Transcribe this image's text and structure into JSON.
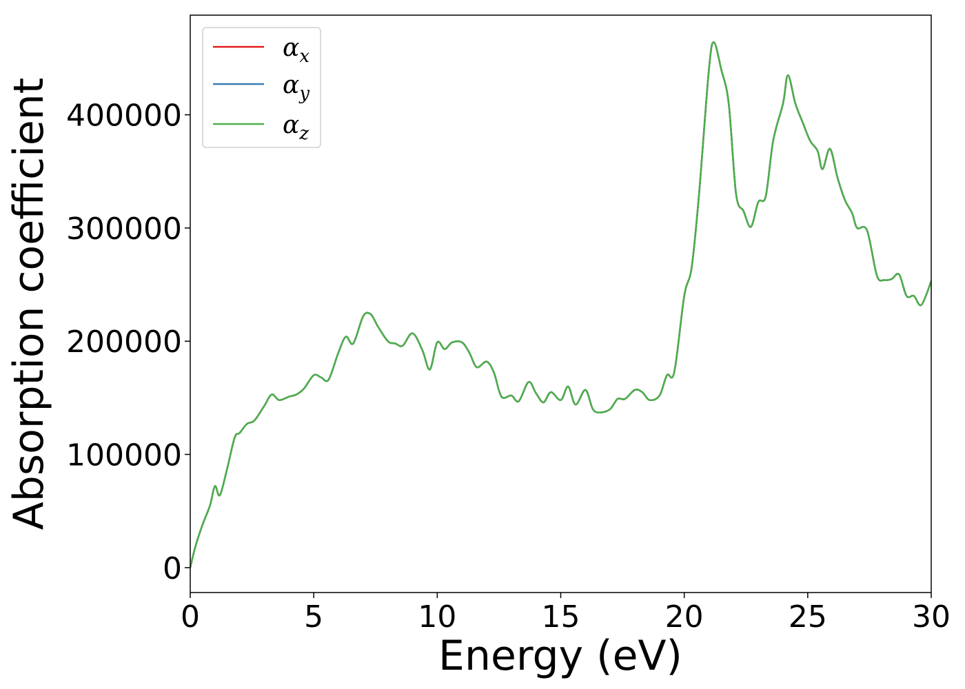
{
  "chart_data": {
    "type": "line",
    "title": "",
    "xlabel": "Energy (eV)",
    "ylabel": "Absorption coefficient",
    "xlim": [
      0,
      30
    ],
    "ylim": [
      -22000,
      488000
    ],
    "xticks": [
      0,
      5,
      10,
      15,
      20,
      25,
      30
    ],
    "yticks": [
      0,
      100000,
      200000,
      300000,
      400000
    ],
    "grid": false,
    "legend": "top-left",
    "x": [
      0,
      0.2,
      0.5,
      0.8,
      1.0,
      1.2,
      1.5,
      1.8,
      2.0,
      2.3,
      2.6,
      3.0,
      3.3,
      3.6,
      4.0,
      4.3,
      4.6,
      5.0,
      5.3,
      5.6,
      6.0,
      6.3,
      6.6,
      7.0,
      7.3,
      7.6,
      8.0,
      8.3,
      8.6,
      9.0,
      9.4,
      9.7,
      10.0,
      10.3,
      10.6,
      11.0,
      11.3,
      11.6,
      12.0,
      12.3,
      12.6,
      13.0,
      13.3,
      13.7,
      14.0,
      14.3,
      14.6,
      15.0,
      15.3,
      15.6,
      16.0,
      16.3,
      16.6,
      17.0,
      17.3,
      17.6,
      18.0,
      18.3,
      18.6,
      19.0,
      19.3,
      19.6,
      20.0,
      20.3,
      20.6,
      21.0,
      21.2,
      21.5,
      21.8,
      22.1,
      22.4,
      22.7,
      23.0,
      23.3,
      23.6,
      24.0,
      24.2,
      24.5,
      24.8,
      25.1,
      25.4,
      25.6,
      25.9,
      26.2,
      26.5,
      26.8,
      27.0,
      27.4,
      27.8,
      28.1,
      28.4,
      28.7,
      29.0,
      29.3,
      29.6,
      30.0
    ],
    "series": [
      {
        "name": "α_x",
        "color": "#e41a1c",
        "values": [
          0,
          18000,
          38000,
          55000,
          72000,
          64000,
          88000,
          115000,
          119000,
          127000,
          130000,
          143000,
          153000,
          148000,
          151000,
          153000,
          158000,
          170000,
          168000,
          166000,
          190000,
          204000,
          198000,
          222000,
          224000,
          213000,
          200000,
          198000,
          196000,
          207000,
          192000,
          175000,
          199000,
          193000,
          199000,
          199000,
          190000,
          177000,
          182000,
          172000,
          151000,
          152000,
          147000,
          164000,
          154000,
          146000,
          155000,
          148000,
          160000,
          144000,
          157000,
          140000,
          137000,
          140000,
          149000,
          149000,
          157000,
          155000,
          148000,
          152000,
          170000,
          173000,
          240000,
          265000,
          330000,
          440000,
          464000,
          440000,
          410000,
          330000,
          315000,
          301000,
          323000,
          328000,
          377000,
          410000,
          435000,
          410000,
          393000,
          377000,
          368000,
          352000,
          370000,
          345000,
          325000,
          313000,
          300000,
          298000,
          258000,
          254000,
          255000,
          259000,
          240000,
          240000,
          232000,
          253000
        ]
      },
      {
        "name": "α_y",
        "color": "#377eb8",
        "values": [
          0,
          18000,
          38000,
          55000,
          72000,
          64000,
          88000,
          115000,
          119000,
          127000,
          130000,
          143000,
          153000,
          148000,
          151000,
          153000,
          158000,
          170000,
          168000,
          166000,
          190000,
          204000,
          198000,
          222000,
          224000,
          213000,
          200000,
          198000,
          196000,
          207000,
          192000,
          175000,
          199000,
          193000,
          199000,
          199000,
          190000,
          177000,
          182000,
          172000,
          151000,
          152000,
          147000,
          164000,
          154000,
          146000,
          155000,
          148000,
          160000,
          144000,
          157000,
          140000,
          137000,
          140000,
          149000,
          149000,
          157000,
          155000,
          148000,
          152000,
          170000,
          173000,
          240000,
          265000,
          330000,
          440000,
          464000,
          440000,
          410000,
          330000,
          315000,
          301000,
          323000,
          328000,
          377000,
          410000,
          435000,
          410000,
          393000,
          377000,
          368000,
          352000,
          370000,
          345000,
          325000,
          313000,
          300000,
          298000,
          258000,
          254000,
          255000,
          259000,
          240000,
          240000,
          232000,
          253000
        ]
      },
      {
        "name": "α_z",
        "color": "#4daf4a",
        "values": [
          0,
          18000,
          38000,
          55000,
          72000,
          64000,
          88000,
          115000,
          119000,
          127000,
          130000,
          143000,
          153000,
          148000,
          151000,
          153000,
          158000,
          170000,
          168000,
          166000,
          190000,
          204000,
          198000,
          222000,
          224000,
          213000,
          200000,
          198000,
          196000,
          207000,
          192000,
          175000,
          199000,
          193000,
          199000,
          199000,
          190000,
          177000,
          182000,
          172000,
          151000,
          152000,
          147000,
          164000,
          154000,
          146000,
          155000,
          148000,
          160000,
          144000,
          157000,
          140000,
          137000,
          140000,
          149000,
          149000,
          157000,
          155000,
          148000,
          152000,
          170000,
          173000,
          240000,
          265000,
          330000,
          440000,
          464000,
          440000,
          410000,
          330000,
          315000,
          301000,
          323000,
          328000,
          377000,
          410000,
          435000,
          410000,
          393000,
          377000,
          368000,
          352000,
          370000,
          345000,
          325000,
          313000,
          300000,
          298000,
          258000,
          254000,
          255000,
          259000,
          240000,
          240000,
          232000,
          253000
        ]
      }
    ]
  }
}
